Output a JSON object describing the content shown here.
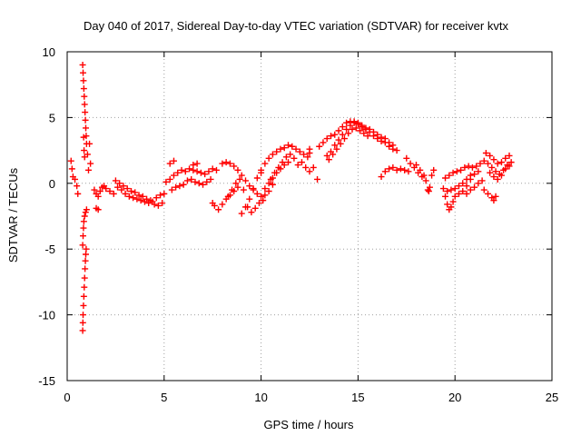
{
  "chart_data": {
    "type": "scatter",
    "title": "Day 040 of 2017, Sidereal Day-to-day VTEC variation (SDTVAR) for receiver kvtx",
    "xlabel": "GPS time / hours",
    "ylabel": "SDTVAR / TECUs",
    "xlim": [
      0,
      25
    ],
    "ylim": [
      -15,
      10
    ],
    "xticks": [
      0,
      5,
      10,
      15,
      20,
      25
    ],
    "yticks": [
      -15,
      -10,
      -5,
      0,
      5,
      10
    ],
    "grid": true,
    "marker": "+",
    "color": "#ff0000",
    "series": [
      {
        "name": "SDTVAR",
        "points": [
          [
            0.2,
            1.7
          ],
          [
            0.25,
            1.1
          ],
          [
            0.3,
            0.5
          ],
          [
            0.4,
            0.3
          ],
          [
            0.5,
            -0.2
          ],
          [
            0.55,
            -0.8
          ],
          [
            0.8,
            9.0
          ],
          [
            0.82,
            8.4
          ],
          [
            0.84,
            7.8
          ],
          [
            0.86,
            7.2
          ],
          [
            0.88,
            6.6
          ],
          [
            0.9,
            6.0
          ],
          [
            0.92,
            5.4
          ],
          [
            0.94,
            4.8
          ],
          [
            0.96,
            4.2
          ],
          [
            0.98,
            3.6
          ],
          [
            1.0,
            3.0
          ],
          [
            0.85,
            3.5
          ],
          [
            0.87,
            2.5
          ],
          [
            0.9,
            2.0
          ],
          [
            0.8,
            -11.2
          ],
          [
            0.81,
            -10.6
          ],
          [
            0.82,
            -10.0
          ],
          [
            0.84,
            -9.3
          ],
          [
            0.86,
            -8.6
          ],
          [
            0.88,
            -7.9
          ],
          [
            0.9,
            -7.2
          ],
          [
            0.92,
            -6.5
          ],
          [
            0.94,
            -5.9
          ],
          [
            0.96,
            -5.4
          ],
          [
            0.98,
            -5.0
          ],
          [
            0.8,
            -4.7
          ],
          [
            0.82,
            -4.0
          ],
          [
            0.84,
            -3.4
          ],
          [
            0.86,
            -2.9
          ],
          [
            0.9,
            -2.5
          ],
          [
            0.95,
            -2.2
          ],
          [
            1.0,
            -2.0
          ],
          [
            1.1,
            1.0
          ],
          [
            1.2,
            1.5
          ],
          [
            1.05,
            2.2
          ],
          [
            1.15,
            3.0
          ],
          [
            1.4,
            -0.5
          ],
          [
            1.5,
            -0.8
          ],
          [
            1.6,
            -1.0
          ],
          [
            1.7,
            -0.6
          ],
          [
            1.8,
            -0.3
          ],
          [
            1.9,
            -0.2
          ],
          [
            2.0,
            -0.4
          ],
          [
            1.5,
            -1.9
          ],
          [
            1.6,
            -2.0
          ],
          [
            2.2,
            -0.6
          ],
          [
            2.4,
            -0.8
          ],
          [
            2.6,
            -0.3
          ],
          [
            2.8,
            -0.5
          ],
          [
            3.0,
            -0.8
          ],
          [
            3.2,
            -1.0
          ],
          [
            3.4,
            -1.1
          ],
          [
            3.6,
            -1.2
          ],
          [
            3.8,
            -1.3
          ],
          [
            4.0,
            -1.4
          ],
          [
            4.2,
            -1.5
          ],
          [
            4.4,
            -1.4
          ],
          [
            4.6,
            -1.1
          ],
          [
            4.8,
            -0.9
          ],
          [
            5.0,
            -0.8
          ],
          [
            2.5,
            0.2
          ],
          [
            2.7,
            0.0
          ],
          [
            2.9,
            -0.2
          ],
          [
            3.1,
            -0.4
          ],
          [
            3.3,
            -0.6
          ],
          [
            3.5,
            -0.7
          ],
          [
            3.7,
            -0.9
          ],
          [
            3.9,
            -1.0
          ],
          [
            4.1,
            -1.2
          ],
          [
            4.3,
            -1.3
          ],
          [
            4.5,
            -1.6
          ],
          [
            4.7,
            -1.7
          ],
          [
            4.9,
            -1.5
          ],
          [
            5.1,
            0.1
          ],
          [
            5.3,
            0.3
          ],
          [
            5.5,
            0.6
          ],
          [
            5.7,
            0.8
          ],
          [
            5.9,
            1.0
          ],
          [
            6.1,
            0.9
          ],
          [
            6.3,
            1.1
          ],
          [
            6.5,
            1.0
          ],
          [
            6.7,
            0.9
          ],
          [
            6.9,
            0.8
          ],
          [
            7.1,
            0.7
          ],
          [
            7.3,
            0.9
          ],
          [
            7.5,
            1.1
          ],
          [
            7.7,
            1.0
          ],
          [
            5.4,
            -0.5
          ],
          [
            5.6,
            -0.3
          ],
          [
            5.8,
            -0.2
          ],
          [
            6.0,
            -0.1
          ],
          [
            6.2,
            0.2
          ],
          [
            6.4,
            0.3
          ],
          [
            6.6,
            0.1
          ],
          [
            6.8,
            0.0
          ],
          [
            7.0,
            -0.1
          ],
          [
            7.2,
            0.1
          ],
          [
            7.4,
            0.3
          ],
          [
            5.3,
            1.5
          ],
          [
            5.5,
            1.7
          ],
          [
            6.5,
            1.4
          ],
          [
            6.7,
            1.5
          ],
          [
            7.5,
            -1.5
          ],
          [
            7.6,
            -1.7
          ],
          [
            7.8,
            -2.0
          ],
          [
            8.0,
            -1.6
          ],
          [
            8.2,
            -1.2
          ],
          [
            8.4,
            -0.9
          ],
          [
            8.6,
            -0.6
          ],
          [
            8.8,
            -0.3
          ],
          [
            8.0,
            1.5
          ],
          [
            8.2,
            1.6
          ],
          [
            8.4,
            1.5
          ],
          [
            8.6,
            1.3
          ],
          [
            8.8,
            1.0
          ],
          [
            9.0,
            0.6
          ],
          [
            9.2,
            0.2
          ],
          [
            9.4,
            -0.2
          ],
          [
            9.6,
            -0.5
          ],
          [
            9.8,
            -0.8
          ],
          [
            10.0,
            -1.0
          ],
          [
            10.2,
            -0.9
          ],
          [
            10.4,
            -0.6
          ],
          [
            10.6,
            -0.1
          ],
          [
            8.3,
            -1.0
          ],
          [
            8.5,
            -0.5
          ],
          [
            8.7,
            0.0
          ],
          [
            8.9,
            0.3
          ],
          [
            9.1,
            -0.5
          ],
          [
            9.3,
            -1.8
          ],
          [
            9.5,
            -2.2
          ],
          [
            9.7,
            -1.9
          ],
          [
            9.9,
            -1.5
          ],
          [
            10.1,
            -1.3
          ],
          [
            9.0,
            -2.3
          ],
          [
            9.2,
            -1.8
          ],
          [
            9.4,
            -1.2
          ],
          [
            9.6,
            -0.4
          ],
          [
            9.8,
            0.4
          ],
          [
            10.0,
            0.8
          ],
          [
            10.0,
            1.0
          ],
          [
            10.2,
            1.5
          ],
          [
            10.4,
            1.9
          ],
          [
            10.6,
            2.2
          ],
          [
            10.8,
            2.4
          ],
          [
            11.0,
            2.6
          ],
          [
            11.2,
            2.7
          ],
          [
            11.4,
            2.9
          ],
          [
            11.6,
            2.8
          ],
          [
            11.8,
            2.6
          ],
          [
            12.0,
            2.4
          ],
          [
            12.2,
            2.2
          ],
          [
            12.4,
            2.0
          ],
          [
            10.5,
            0.3
          ],
          [
            10.7,
            0.8
          ],
          [
            10.9,
            1.2
          ],
          [
            11.1,
            1.6
          ],
          [
            11.3,
            2.0
          ],
          [
            11.5,
            2.2
          ],
          [
            11.7,
            1.9
          ],
          [
            11.9,
            1.4
          ],
          [
            12.1,
            1.6
          ],
          [
            12.3,
            1.2
          ],
          [
            12.5,
            0.9
          ],
          [
            10.2,
            -0.4
          ],
          [
            10.4,
            0.0
          ],
          [
            10.6,
            0.4
          ],
          [
            10.8,
            0.8
          ],
          [
            11.0,
            1.1
          ],
          [
            11.2,
            1.4
          ],
          [
            11.4,
            1.6
          ],
          [
            12.5,
            2.3
          ],
          [
            12.7,
            1.2
          ],
          [
            12.9,
            0.3
          ],
          [
            12.5,
            2.6
          ],
          [
            13.0,
            2.8
          ],
          [
            13.2,
            3.1
          ],
          [
            13.4,
            3.4
          ],
          [
            13.6,
            3.6
          ],
          [
            13.8,
            3.7
          ],
          [
            14.0,
            4.0
          ],
          [
            14.2,
            4.3
          ],
          [
            14.4,
            4.6
          ],
          [
            14.6,
            4.7
          ],
          [
            14.8,
            4.6
          ],
          [
            15.0,
            4.5
          ],
          [
            15.2,
            4.3
          ],
          [
            15.4,
            4.1
          ],
          [
            15.6,
            3.9
          ],
          [
            15.8,
            3.6
          ],
          [
            16.0,
            3.4
          ],
          [
            16.2,
            3.2
          ],
          [
            16.4,
            3.1
          ],
          [
            16.6,
            2.8
          ],
          [
            16.8,
            2.6
          ],
          [
            13.5,
            1.8
          ],
          [
            13.7,
            2.2
          ],
          [
            13.9,
            2.6
          ],
          [
            14.1,
            3.0
          ],
          [
            14.3,
            3.4
          ],
          [
            14.5,
            3.8
          ],
          [
            14.7,
            4.1
          ],
          [
            14.9,
            4.2
          ],
          [
            15.1,
            4.0
          ],
          [
            15.3,
            3.8
          ],
          [
            15.5,
            3.6
          ],
          [
            13.4,
            2.1
          ],
          [
            13.6,
            2.4
          ],
          [
            13.8,
            2.9
          ],
          [
            14.0,
            3.3
          ],
          [
            14.2,
            3.7
          ],
          [
            14.4,
            4.1
          ],
          [
            14.6,
            4.4
          ],
          [
            14.8,
            4.7
          ],
          [
            15.0,
            4.6
          ],
          [
            15.2,
            4.4
          ],
          [
            15.4,
            4.2
          ],
          [
            15.6,
            4.1
          ],
          [
            15.8,
            3.9
          ],
          [
            16.0,
            3.7
          ],
          [
            16.2,
            3.5
          ],
          [
            16.4,
            3.4
          ],
          [
            16.6,
            3.1
          ],
          [
            16.8,
            2.9
          ],
          [
            17.0,
            2.5
          ],
          [
            16.2,
            0.5
          ],
          [
            16.4,
            0.9
          ],
          [
            16.6,
            1.1
          ],
          [
            16.8,
            1.2
          ],
          [
            17.0,
            1.0
          ],
          [
            17.2,
            1.1
          ],
          [
            17.4,
            1.0
          ],
          [
            17.6,
            0.9
          ],
          [
            17.5,
            1.9
          ],
          [
            17.7,
            1.5
          ],
          [
            17.9,
            1.2
          ],
          [
            18.1,
            0.8
          ],
          [
            18.3,
            0.5
          ],
          [
            18.5,
            0.2
          ],
          [
            18.0,
            1.4
          ],
          [
            18.2,
            1.0
          ],
          [
            18.4,
            0.6
          ],
          [
            18.6,
            -0.5
          ],
          [
            18.7,
            -0.3
          ],
          [
            18.8,
            0.6
          ],
          [
            18.9,
            1.0
          ],
          [
            18.65,
            -0.6
          ],
          [
            19.4,
            -0.4
          ],
          [
            19.5,
            -1.0
          ],
          [
            19.6,
            -1.6
          ],
          [
            19.7,
            -2.0
          ],
          [
            19.8,
            -1.8
          ],
          [
            19.9,
            -1.4
          ],
          [
            20.0,
            -1.0
          ],
          [
            20.2,
            -0.8
          ],
          [
            20.4,
            -0.6
          ],
          [
            20.6,
            -0.2
          ],
          [
            20.8,
            0.3
          ],
          [
            21.0,
            0.7
          ],
          [
            21.2,
            0.9
          ],
          [
            19.5,
            0.4
          ],
          [
            19.7,
            0.6
          ],
          [
            19.9,
            0.8
          ],
          [
            20.1,
            0.9
          ],
          [
            20.3,
            1.0
          ],
          [
            20.5,
            1.2
          ],
          [
            20.7,
            1.3
          ],
          [
            20.9,
            1.2
          ],
          [
            21.1,
            1.3
          ],
          [
            21.3,
            1.5
          ],
          [
            21.5,
            1.7
          ],
          [
            19.6,
            -0.6
          ],
          [
            19.8,
            -0.5
          ],
          [
            20.0,
            -0.4
          ],
          [
            20.2,
            -0.2
          ],
          [
            20.4,
            0.0
          ],
          [
            20.6,
            0.3
          ],
          [
            20.8,
            0.6
          ],
          [
            20.6,
            -0.8
          ],
          [
            20.8,
            -0.5
          ],
          [
            21.0,
            -0.3
          ],
          [
            21.2,
            0.0
          ],
          [
            21.4,
            0.2
          ],
          [
            21.5,
            -0.5
          ],
          [
            21.7,
            -0.8
          ],
          [
            21.9,
            -1.1
          ],
          [
            22.0,
            -1.3
          ],
          [
            22.1,
            -1.0
          ],
          [
            21.6,
            2.3
          ],
          [
            21.8,
            2.1
          ],
          [
            22.0,
            1.8
          ],
          [
            22.2,
            1.5
          ],
          [
            22.4,
            1.6
          ],
          [
            22.6,
            1.9
          ],
          [
            22.8,
            2.1
          ],
          [
            21.7,
            1.5
          ],
          [
            21.9,
            1.2
          ],
          [
            22.1,
            0.9
          ],
          [
            22.3,
            0.7
          ],
          [
            22.5,
            1.0
          ],
          [
            22.7,
            1.4
          ],
          [
            22.9,
            1.6
          ],
          [
            21.8,
            0.8
          ],
          [
            22.0,
            0.5
          ],
          [
            22.2,
            0.3
          ],
          [
            22.4,
            0.6
          ],
          [
            22.6,
            1.1
          ],
          [
            22.8,
            1.3
          ]
        ]
      }
    ]
  }
}
